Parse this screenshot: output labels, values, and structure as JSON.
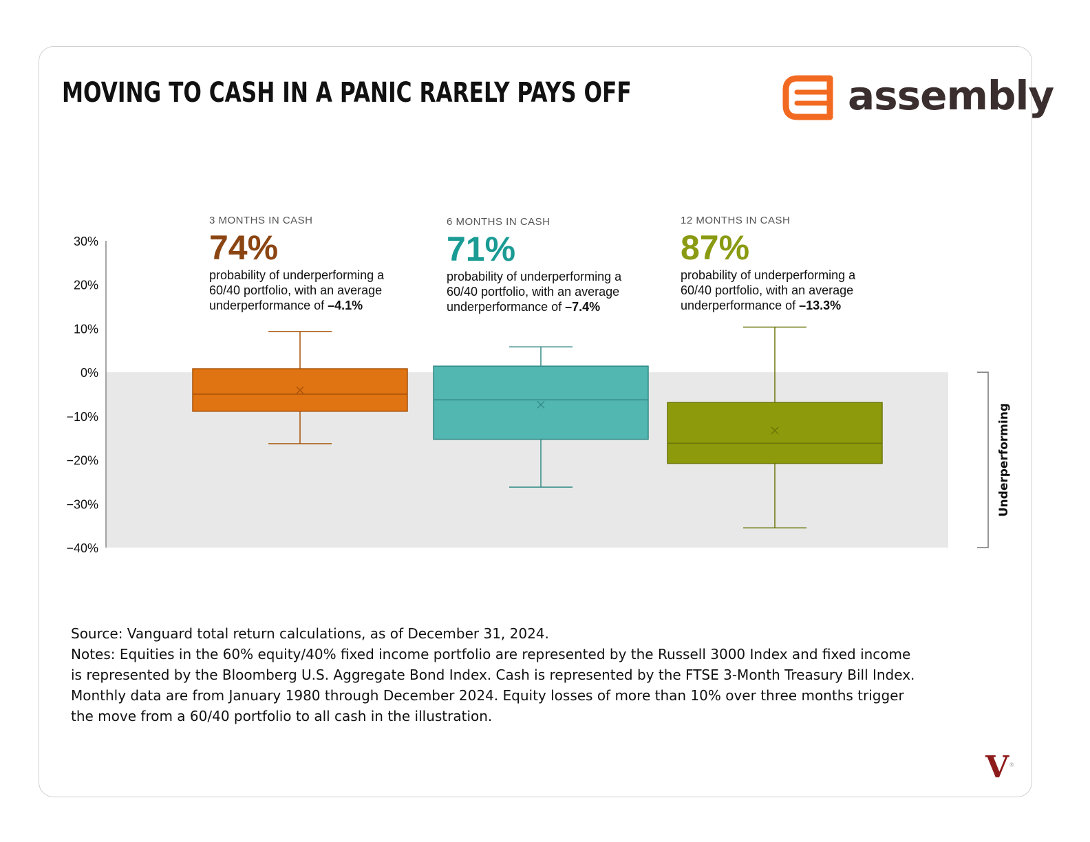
{
  "header": {
    "title": "MOVING TO CASH IN A PANIC RARELY PAYS OFF",
    "logo_text": "assembly",
    "logo_color": "#f26a21"
  },
  "chart_data": {
    "type": "boxplot",
    "ylim": [
      -40,
      30
    ],
    "yticks": [
      {
        "value": 30,
        "label": "30%"
      },
      {
        "value": 20,
        "label": "20%"
      },
      {
        "value": 10,
        "label": "10%"
      },
      {
        "value": 0,
        "label": "0%"
      },
      {
        "value": -10,
        "label": "−10%"
      },
      {
        "value": -20,
        "label": "−20%"
      },
      {
        "value": -30,
        "label": "−30%"
      },
      {
        "value": -40,
        "label": "−40%"
      }
    ],
    "shaded_region": {
      "from": 0,
      "to": -40,
      "label": "Underperforming",
      "color": "#e8e8e8"
    },
    "series": [
      {
        "name": "3 MONTHS IN CASH",
        "color": "#e07312",
        "dark": "#a65209",
        "whisker_high": 9.3,
        "q3": 0.8,
        "median": -5.0,
        "q1": -8.9,
        "whisker_low": -16.3,
        "mean": -4.1,
        "probability": "74%",
        "desc_pre": "probability of underperforming a 60/40 portfolio, with an average underperformance of ",
        "desc_value": "–4.1%",
        "label_color": "#8b4513"
      },
      {
        "name": "6 MONTHS IN CASH",
        "color": "#52b6b1",
        "dark": "#338a86",
        "whisker_high": 5.8,
        "q3": 1.4,
        "median": -6.3,
        "q1": -15.3,
        "whisker_low": -26.2,
        "mean": -7.4,
        "probability": "71%",
        "desc_pre": "probability of underperforming a 60/40 portfolio, with an average underperformance of ",
        "desc_value": "–7.4%",
        "label_color": "#1a9b94"
      },
      {
        "name": "12 MONTHS IN CASH",
        "color": "#8d9a0b",
        "dark": "#6a7508",
        "whisker_high": 10.3,
        "q3": -6.9,
        "median": -16.2,
        "q1": -20.8,
        "whisker_low": -35.5,
        "mean": -13.3,
        "probability": "87%",
        "desc_pre": "probability of underperforming a 60/40 portfolio, with an average underperformance of ",
        "desc_value": "–13.3%",
        "label_color": "#8a9a12"
      }
    ]
  },
  "footer": {
    "source": "Source: Vanguard total return calculations, as of December 31, 2024.",
    "notes": "Notes: Equities in the 60% equity/40% fixed income portfolio are represented by the Russell 3000 Index and fixed income is represented by the Bloomberg U.S. Aggregate Bond Index. Cash is represented by the FTSE 3-Month Treasury Bill Index. Monthly data are from January 1980 through December 2024. Equity losses of more than 10% over three months trigger the move from a 60/40 portfolio to all cash in the illustration."
  },
  "brand_mark": {
    "letter": "V",
    "suffix": "®"
  }
}
